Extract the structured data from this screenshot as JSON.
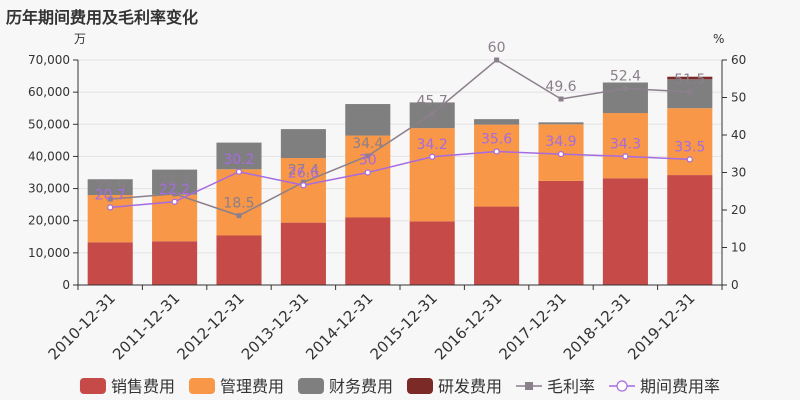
{
  "chart_data": {
    "type": "bar",
    "title": "历年期间费用及毛利率变化",
    "left_unit": "万",
    "right_unit": "%",
    "categories": [
      "2010-12-31",
      "2011-12-31",
      "2012-12-31",
      "2013-12-31",
      "2014-12-31",
      "2015-12-31",
      "2016-12-31",
      "2017-12-31",
      "2018-12-31",
      "2019-12-31"
    ],
    "yleft": {
      "lim": [
        0,
        70000
      ],
      "ticks": [
        "0",
        "10,000",
        "20,000",
        "30,000",
        "40,000",
        "50,000",
        "60,000",
        "70,000"
      ],
      "tick_values": [
        0,
        10000,
        20000,
        30000,
        40000,
        50000,
        60000,
        70000
      ]
    },
    "yright": {
      "lim": [
        0,
        60
      ],
      "ticks": [
        "0",
        "10",
        "20",
        "30",
        "40",
        "50",
        "60"
      ],
      "tick_values": [
        0,
        10,
        20,
        30,
        40,
        50,
        60
      ]
    },
    "stacked_series": [
      {
        "name": "销售费用",
        "color": "#c54a48",
        "values": [
          13300,
          13600,
          15400,
          19400,
          21000,
          19800,
          24400,
          32400,
          33200,
          34200
        ]
      },
      {
        "name": "管理费用",
        "color": "#f79747",
        "values": [
          14700,
          14500,
          20600,
          20100,
          25500,
          29000,
          25500,
          17600,
          20300,
          20800
        ]
      },
      {
        "name": "财务费用",
        "color": "#7f7f7f",
        "values": [
          4900,
          7800,
          8300,
          9000,
          9800,
          8000,
          1700,
          600,
          9500,
          9000
        ]
      },
      {
        "name": "研发费用",
        "color": "#7b2a28",
        "values": [
          0,
          0,
          0,
          0,
          0,
          0,
          0,
          0,
          0,
          800
        ]
      }
    ],
    "line_series": [
      {
        "name": "毛利率",
        "color": "#8c7f8c",
        "marker": "square",
        "values": [
          22.9,
          24.3,
          18.5,
          27.4,
          34.4,
          45.7,
          60,
          49.6,
          52.4,
          51.5
        ],
        "labels": [
          "22.9",
          "24.3",
          "18.5",
          "27.4",
          "34.4",
          "45.7",
          "60",
          "49.6",
          "52.4",
          "51.5"
        ]
      },
      {
        "name": "期间费用率",
        "color": "#a66be0",
        "marker": "circle",
        "values": [
          20.7,
          22.2,
          30.2,
          26.6,
          30,
          34.2,
          35.6,
          34.9,
          34.3,
          33.5
        ],
        "labels": [
          "20.7",
          "22.2",
          "30.2",
          "26.6",
          "30",
          "34.2",
          "35.6",
          "34.9",
          "34.3",
          "33.5"
        ]
      }
    ],
    "legend_position": "bottom"
  }
}
